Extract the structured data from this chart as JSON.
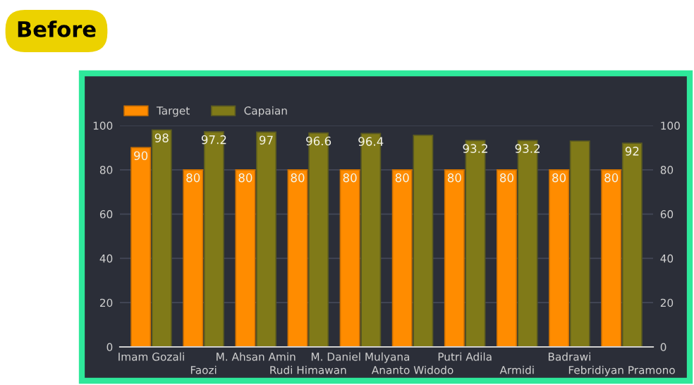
{
  "chart_data": {
    "type": "bar",
    "annotations": [
      "Before"
    ],
    "categories": [
      "Imam Gozali",
      "Faozi",
      "M. Ahsan Amin",
      "Rudi Himawan",
      "M. Daniel Mulyana",
      "Ananto Widodo",
      "Putri Adila",
      "Armidi",
      "Badrawi",
      "Febridiyan Pramono"
    ],
    "series": [
      {
        "name": "Target",
        "color": "#ff8c00",
        "values": [
          90,
          80,
          80,
          80,
          80,
          80,
          80,
          80,
          80,
          80
        ],
        "value_labels": [
          "90",
          "80",
          "80",
          "80",
          "80",
          "80",
          "80",
          "80",
          "80",
          "80"
        ]
      },
      {
        "name": "Capaian",
        "color": "#807a18",
        "values": [
          98,
          97.2,
          97,
          96.6,
          96.4,
          95.6,
          93.2,
          93.2,
          93,
          92
        ],
        "value_labels": [
          "98",
          "97.2",
          "97",
          "96.6",
          "96.4",
          null,
          "93.2",
          "93.2",
          null,
          "92"
        ]
      }
    ],
    "ylim": [
      0,
      100
    ],
    "yticks": [
      0,
      20,
      40,
      60,
      80,
      100
    ],
    "y2lim": [
      0,
      100
    ],
    "y2ticks": [
      0,
      20,
      40,
      60,
      80,
      100
    ],
    "grid": "y",
    "legend": "top left"
  }
}
